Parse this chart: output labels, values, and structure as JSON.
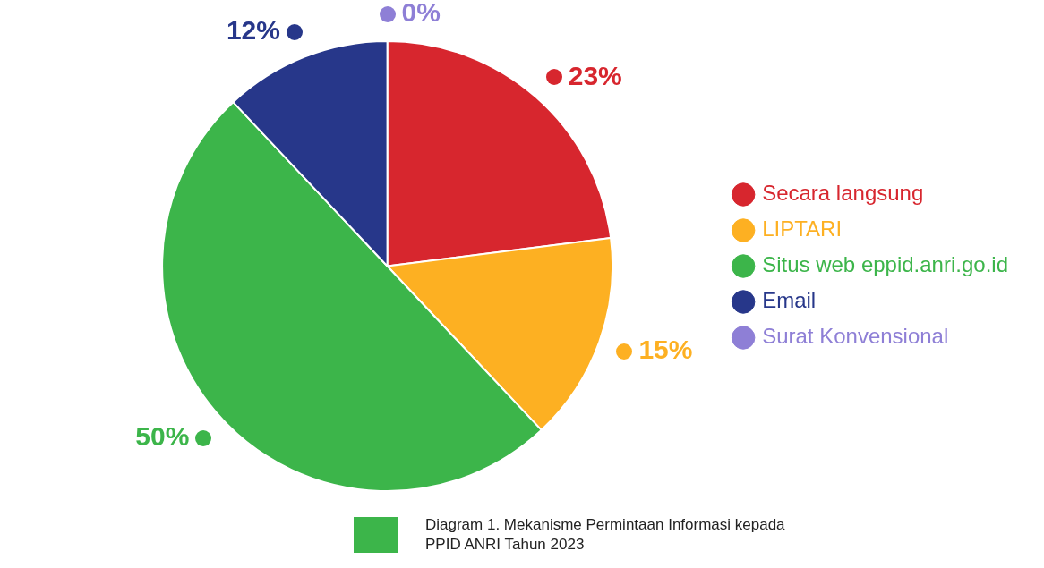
{
  "chart_data": {
    "type": "pie",
    "categories": [
      "Secara langsung",
      "LIPTARI",
      "Situs web eppid.anri.go.id",
      "Email",
      "Surat Konvensional"
    ],
    "values": [
      23,
      15,
      50,
      12,
      0
    ],
    "colors": [
      "#d7262e",
      "#fdb022",
      "#3cb54a",
      "#27378a",
      "#8e7fd6"
    ],
    "value_labels": [
      "23%",
      "15%",
      "50%",
      "12%",
      "0%"
    ],
    "legend": "right",
    "marker": "circle",
    "annotations": [
      "Diagram 1. Mekanisme Permintaan Informasi kepada PPID ANRI Tahun 2023"
    ]
  }
}
